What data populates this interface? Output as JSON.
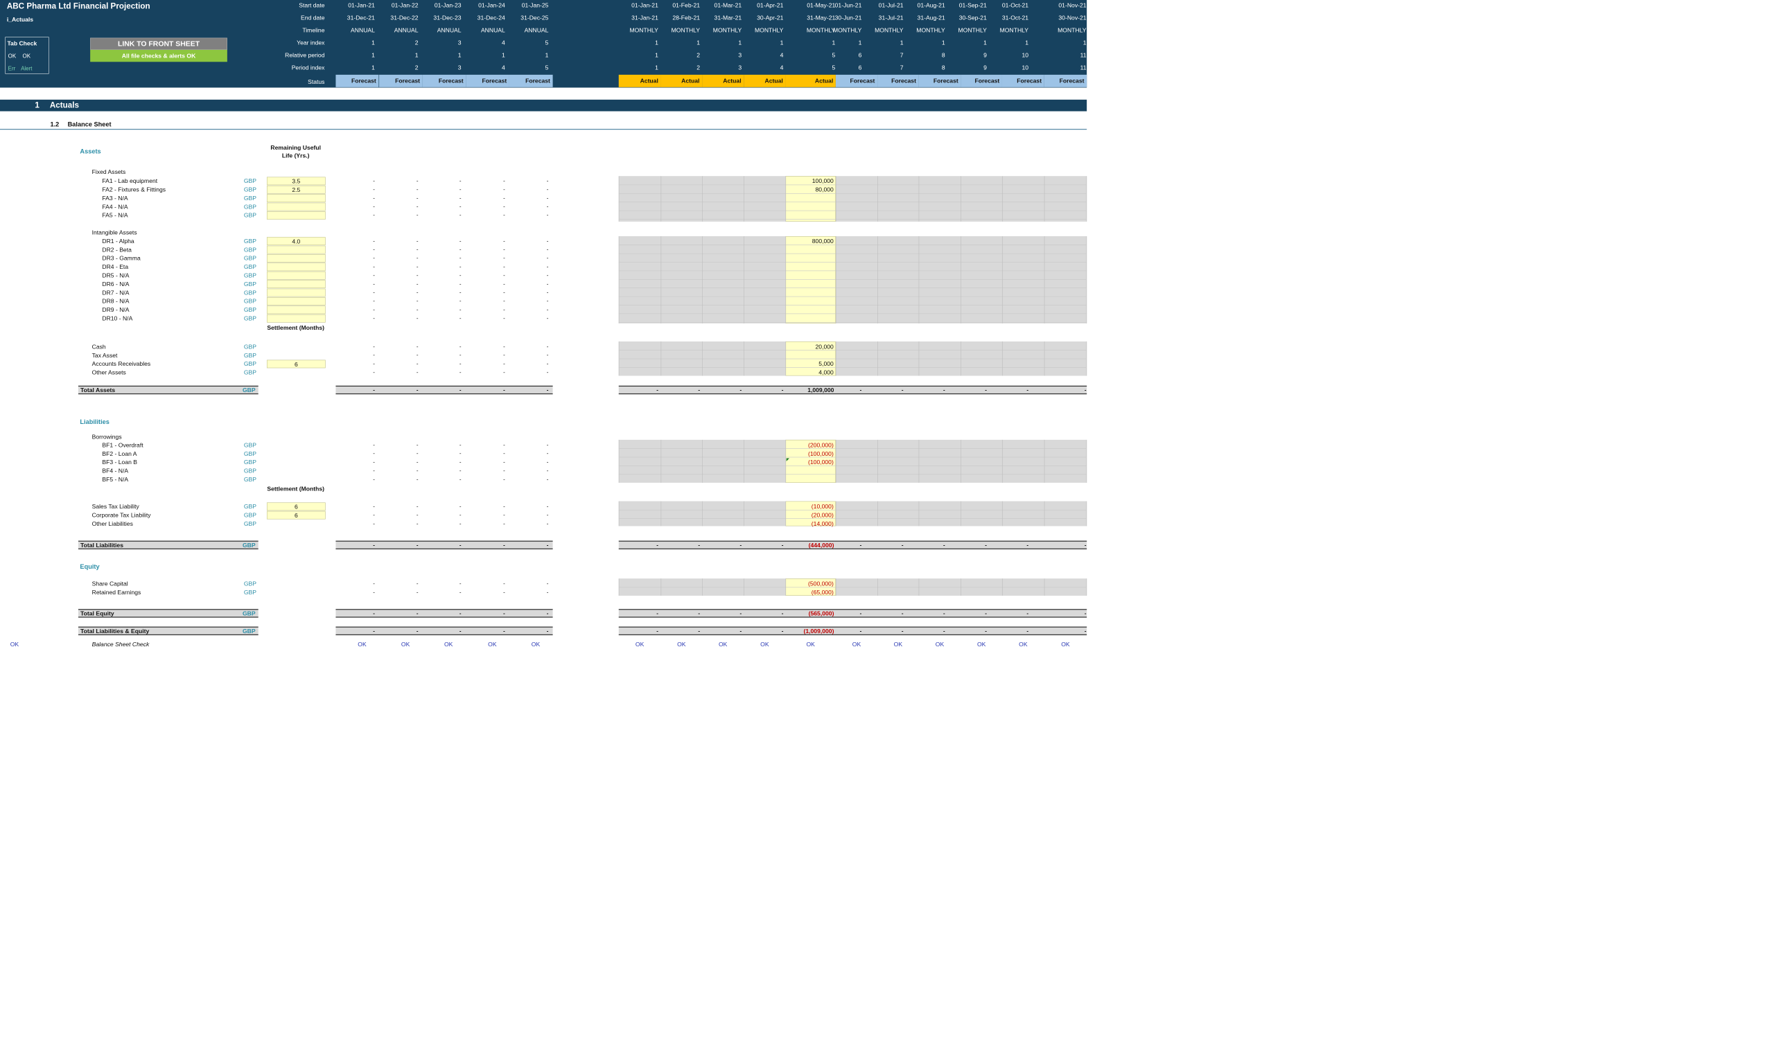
{
  "header": {
    "title": "ABC Pharma Ltd Financial Projection",
    "sheet": "i_Actuals",
    "tab_check_title": "Tab Check",
    "tab_check_ok1": "OK",
    "tab_check_ok2": "OK",
    "tab_check_err": "Err",
    "tab_check_alert": "Alert",
    "link_button": "LINK TO FRONT SHEET",
    "checks_status": "All file checks & alerts OK",
    "row_labels": [
      "Start date",
      "End date",
      "Timeline",
      "Year index",
      "Relative period",
      "Period index",
      "Status"
    ]
  },
  "annual": [
    {
      "start": "01-Jan-21",
      "end": "31-Dec-21",
      "timeline": "ANNUAL",
      "year": "1",
      "rel": "1",
      "idx": "1",
      "status": "Forecast",
      "check": "OK"
    },
    {
      "start": "01-Jan-22",
      "end": "31-Dec-22",
      "timeline": "ANNUAL",
      "year": "2",
      "rel": "1",
      "idx": "2",
      "status": "Forecast",
      "check": "OK"
    },
    {
      "start": "01-Jan-23",
      "end": "31-Dec-23",
      "timeline": "ANNUAL",
      "year": "3",
      "rel": "1",
      "idx": "3",
      "status": "Forecast",
      "check": "OK"
    },
    {
      "start": "01-Jan-24",
      "end": "31-Dec-24",
      "timeline": "ANNUAL",
      "year": "4",
      "rel": "1",
      "idx": "4",
      "status": "Forecast",
      "check": "OK"
    },
    {
      "start": "01-Jan-25",
      "end": "31-Dec-25",
      "timeline": "ANNUAL",
      "year": "5",
      "rel": "1",
      "idx": "5",
      "status": "Forecast",
      "check": "OK"
    }
  ],
  "monthly": [
    {
      "start": "01-Jan-21",
      "end": "31-Jan-21",
      "timeline": "MONTHLY",
      "year": "1",
      "rel": "1",
      "idx": "1",
      "status": "Actual",
      "check": "OK"
    },
    {
      "start": "01-Feb-21",
      "end": "28-Feb-21",
      "timeline": "MONTHLY",
      "year": "1",
      "rel": "2",
      "idx": "2",
      "status": "Actual",
      "check": "OK"
    },
    {
      "start": "01-Mar-21",
      "end": "31-Mar-21",
      "timeline": "MONTHLY",
      "year": "1",
      "rel": "3",
      "idx": "3",
      "status": "Actual",
      "check": "OK"
    },
    {
      "start": "01-Apr-21",
      "end": "30-Apr-21",
      "timeline": "MONTHLY",
      "year": "1",
      "rel": "4",
      "idx": "4",
      "status": "Actual",
      "check": "OK"
    },
    {
      "start": "01-May-21",
      "end": "31-May-21",
      "timeline": "MONTHLY",
      "year": "1",
      "rel": "5",
      "idx": "5",
      "status": "Actual",
      "check": "OK"
    },
    {
      "start": "01-Jun-21",
      "end": "30-Jun-21",
      "timeline": "MONTHLY",
      "year": "1",
      "rel": "6",
      "idx": "6",
      "status": "Forecast",
      "check": "OK"
    },
    {
      "start": "01-Jul-21",
      "end": "31-Jul-21",
      "timeline": "MONTHLY",
      "year": "1",
      "rel": "7",
      "idx": "7",
      "status": "Forecast",
      "check": "OK"
    },
    {
      "start": "01-Aug-21",
      "end": "31-Aug-21",
      "timeline": "MONTHLY",
      "year": "1",
      "rel": "8",
      "idx": "8",
      "status": "Forecast",
      "check": "OK"
    },
    {
      "start": "01-Sep-21",
      "end": "30-Sep-21",
      "timeline": "MONTHLY",
      "year": "1",
      "rel": "9",
      "idx": "9",
      "status": "Forecast",
      "check": "OK"
    },
    {
      "start": "01-Oct-21",
      "end": "31-Oct-21",
      "timeline": "MONTHLY",
      "year": "1",
      "rel": "10",
      "idx": "10",
      "status": "Forecast",
      "check": "OK"
    },
    {
      "start": "01-Nov-21",
      "end": "30-Nov-21",
      "timeline": "MONTHLY",
      "year": "1",
      "rel": "11",
      "idx": "11",
      "status": "Forecast",
      "check": "OK"
    }
  ],
  "section": {
    "number": "1",
    "title": "Actuals",
    "sub_number": "1.2",
    "sub_title": "Balance Sheet"
  },
  "col_headers": {
    "useful_life": "Remaining Useful Life (Yrs.)",
    "settlement1": "Settlement (Months)",
    "settlement2": "Settlement (Months)"
  },
  "groups": {
    "assets": "Assets",
    "fixed_assets": "Fixed Assets",
    "intangible_assets": "Intangible Assets",
    "liabilities": "Liabilities",
    "borrowings": "Borrowings",
    "equity": "Equity"
  },
  "dash": "-",
  "unit": "GBP",
  "rows": [
    {
      "label": "FA1 - Lab equipment",
      "param": "3.5",
      "may": "100,000"
    },
    {
      "label": "FA2 - Fixtures & Fittings",
      "param": "2.5",
      "may": "80,000"
    },
    {
      "label": "FA3 - N/A",
      "param": "",
      "may": ""
    },
    {
      "label": "FA4 - N/A",
      "param": "",
      "may": ""
    },
    {
      "label": "FA5 - N/A",
      "param": "",
      "may": ""
    },
    {
      "label": "DR1 - Alpha",
      "param": "4.0",
      "may": "800,000"
    },
    {
      "label": "DR2 - Beta",
      "param": "",
      "may": ""
    },
    {
      "label": "DR3 - Gamma",
      "param": "",
      "may": ""
    },
    {
      "label": "DR4 - Eta",
      "param": "",
      "may": ""
    },
    {
      "label": "DR5 - N/A",
      "param": "",
      "may": ""
    },
    {
      "label": "DR6 - N/A",
      "param": "",
      "may": ""
    },
    {
      "label": "DR7 - N/A",
      "param": "",
      "may": ""
    },
    {
      "label": "DR8 - N/A",
      "param": "",
      "may": ""
    },
    {
      "label": "DR9 - N/A",
      "param": "",
      "may": ""
    },
    {
      "label": "DR10 - N/A",
      "param": "",
      "may": ""
    },
    {
      "label": "Cash",
      "param": "",
      "may": "20,000"
    },
    {
      "label": "Tax Asset",
      "param": "",
      "may": ""
    },
    {
      "label": "Accounts Receivables",
      "param": "6",
      "may": "5,000"
    },
    {
      "label": "Other Assets",
      "param": "",
      "may": "4,000"
    },
    {
      "label": "BF1 - Overdraft",
      "param": "",
      "may": "(200,000)"
    },
    {
      "label": "BF2 - Loan A",
      "param": "",
      "may": "(100,000)"
    },
    {
      "label": "BF3 - Loan B",
      "param": "",
      "may": "(100,000)"
    },
    {
      "label": "BF4 - N/A",
      "param": "",
      "may": ""
    },
    {
      "label": "BF5 - N/A",
      "param": "",
      "may": ""
    },
    {
      "label": "Sales Tax Liability",
      "param": "6",
      "may": "(10,000)"
    },
    {
      "label": "Corporate Tax Liability",
      "param": "6",
      "may": "(20,000)"
    },
    {
      "label": "Other Liabilities",
      "param": "",
      "may": "(14,000)"
    },
    {
      "label": "Share Capital",
      "param": "",
      "may": "(500,000)"
    },
    {
      "label": "Retained Earnings",
      "param": "",
      "may": "(65,000)"
    }
  ],
  "totals": [
    {
      "label": "Total Assets",
      "may": "1,009,000"
    },
    {
      "label": "Total Liabilities",
      "may": "(444,000)"
    },
    {
      "label": "Total Equity",
      "may": "(565,000)"
    },
    {
      "label": "Total Liabilities & Equity",
      "may": "(1,009,000)"
    }
  ],
  "check_row": {
    "ok": "OK",
    "label": "Balance Sheet Check"
  },
  "colors": {
    "header": "#17425f",
    "forecast": "#9dc3e6",
    "actual": "#ffc000",
    "link": "#808080",
    "status_ok": "#8dc63f",
    "teal": "#2e8fa8",
    "negative": "#c00000"
  }
}
